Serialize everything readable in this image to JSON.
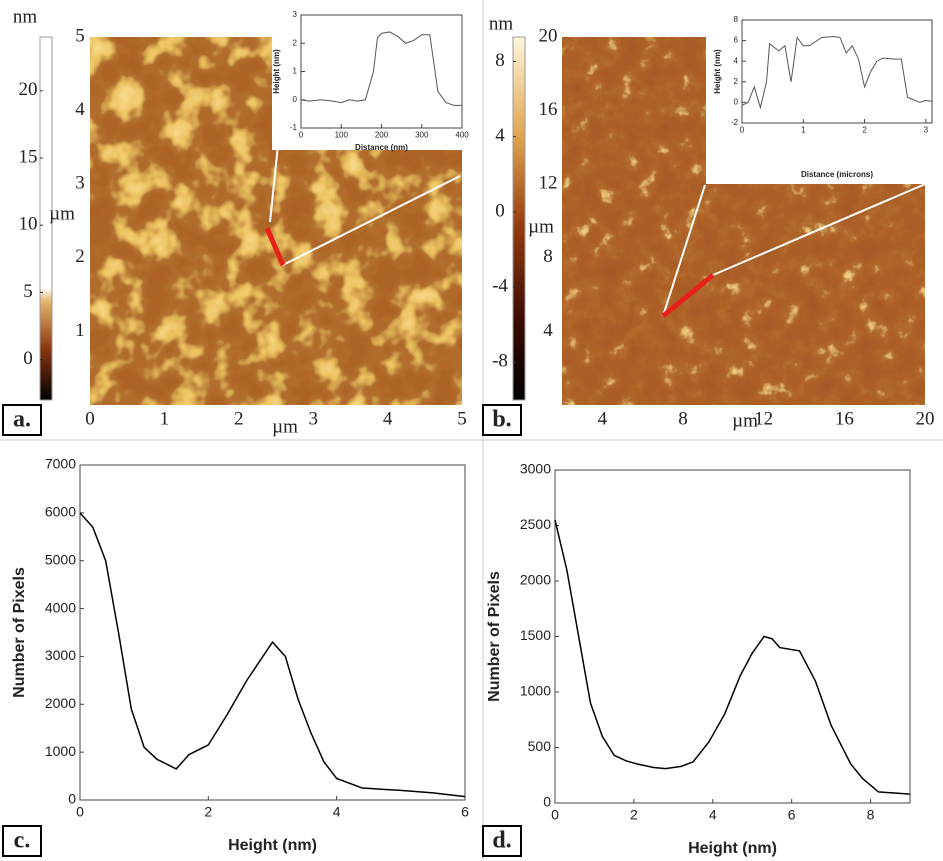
{
  "chart_data": [
    {
      "type": "image",
      "panel_label": "a.",
      "xlabel": "µm",
      "ylabel": "µm",
      "xlim": [
        0,
        5
      ],
      "ylim": [
        0,
        5
      ],
      "xticks": [
        0,
        1,
        2,
        3,
        4,
        5
      ],
      "yticks": [
        1,
        2,
        3,
        4,
        5
      ],
      "colorbar": {
        "label": "nm",
        "lim": [
          -3,
          24
        ],
        "ticks": [
          0,
          5,
          10,
          15,
          20
        ]
      }
    },
    {
      "type": "line",
      "xlabel": "Distance (nm)",
      "ylabel": "Height (nm)",
      "xlim": [
        0,
        400
      ],
      "ylim": [
        -1,
        3
      ],
      "xticks": [
        0,
        100,
        200,
        300,
        400
      ],
      "yticks": [
        -1,
        0,
        1,
        2,
        3
      ],
      "color": "#555555",
      "x": [
        0,
        20,
        50,
        80,
        100,
        120,
        140,
        160,
        180,
        190,
        200,
        220,
        240,
        260,
        280,
        300,
        320,
        340,
        360,
        380,
        400
      ],
      "values": [
        0.0,
        -0.05,
        0.0,
        -0.05,
        -0.1,
        0.0,
        -0.05,
        0.0,
        1.0,
        2.2,
        2.35,
        2.4,
        2.25,
        2.0,
        2.1,
        2.3,
        2.3,
        0.3,
        -0.1,
        -0.2,
        -0.2
      ]
    },
    {
      "type": "image",
      "panel_label": "b.",
      "xlabel": "µm",
      "ylabel": "µm",
      "xlim": [
        2,
        20
      ],
      "ylim": [
        0,
        20
      ],
      "xticks": [
        4,
        8,
        12,
        16,
        20
      ],
      "yticks": [
        4,
        8,
        12,
        16,
        20
      ],
      "colorbar": {
        "label": "nm",
        "lim": [
          -10,
          9.3
        ],
        "ticks": [
          -8,
          -4,
          0,
          4,
          8
        ]
      }
    },
    {
      "type": "line",
      "xlabel": "Distance (microns)",
      "ylabel": "Height (nm)",
      "xlim": [
        0,
        3.1
      ],
      "ylim": [
        -2,
        8
      ],
      "xticks": [
        0,
        1,
        2,
        3
      ],
      "yticks": [
        -2,
        0,
        2,
        4,
        6,
        8
      ],
      "color": "#555555",
      "x": [
        0,
        0.1,
        0.2,
        0.3,
        0.4,
        0.45,
        0.6,
        0.7,
        0.8,
        0.9,
        1.0,
        1.1,
        1.3,
        1.5,
        1.6,
        1.7,
        1.8,
        1.9,
        2.0,
        2.1,
        2.2,
        2.3,
        2.5,
        2.6,
        2.7,
        2.9,
        3.0,
        3.1
      ],
      "values": [
        -0.3,
        0,
        1.5,
        -0.5,
        2,
        5.7,
        5,
        5.5,
        2,
        6.3,
        5.5,
        5.5,
        6.3,
        6.4,
        6.3,
        4.8,
        5.5,
        4.2,
        1.5,
        3,
        4,
        4.3,
        4.2,
        4.2,
        0.5,
        0,
        0.2,
        0.1
      ]
    },
    {
      "type": "line",
      "panel_label": "c.",
      "xlabel": "Height (nm)",
      "ylabel": "Number of Pixels",
      "xlim": [
        0,
        6
      ],
      "ylim": [
        0,
        7000
      ],
      "xticks": [
        0,
        2,
        4,
        6
      ],
      "yticks": [
        0,
        1000,
        2000,
        3000,
        4000,
        5000,
        6000,
        7000
      ],
      "color": "#000000",
      "x": [
        0,
        0.2,
        0.4,
        0.6,
        0.8,
        1.0,
        1.2,
        1.5,
        1.7,
        2.0,
        2.3,
        2.6,
        2.8,
        3.0,
        3.2,
        3.4,
        3.6,
        3.8,
        4.0,
        4.4,
        5.0,
        5.5,
        6.0
      ],
      "values": [
        6000,
        5700,
        5000,
        3500,
        1900,
        1100,
        850,
        650,
        950,
        1150,
        1800,
        2500,
        2900,
        3300,
        3000,
        2100,
        1400,
        800,
        450,
        250,
        200,
        150,
        70
      ]
    },
    {
      "type": "line",
      "panel_label": "d.",
      "xlabel": "Height (nm)",
      "ylabel": "Number of Pixels",
      "xlim": [
        0,
        9
      ],
      "ylim": [
        0,
        3000
      ],
      "xticks": [
        0,
        2,
        4,
        6,
        8
      ],
      "yticks": [
        0,
        500,
        1000,
        1500,
        2000,
        2500,
        3000
      ],
      "color": "#000000",
      "x": [
        0,
        0.3,
        0.6,
        0.9,
        1.2,
        1.5,
        1.8,
        2.1,
        2.5,
        2.8,
        3.2,
        3.5,
        3.9,
        4.3,
        4.7,
        5.0,
        5.3,
        5.5,
        5.7,
        6.2,
        6.6,
        7.0,
        7.5,
        7.8,
        8.2,
        8.6,
        9.0
      ],
      "values": [
        2550,
        2100,
        1500,
        900,
        600,
        430,
        380,
        350,
        320,
        310,
        330,
        370,
        550,
        800,
        1150,
        1350,
        1500,
        1480,
        1400,
        1370,
        1100,
        700,
        350,
        220,
        100,
        90,
        80
      ]
    }
  ]
}
